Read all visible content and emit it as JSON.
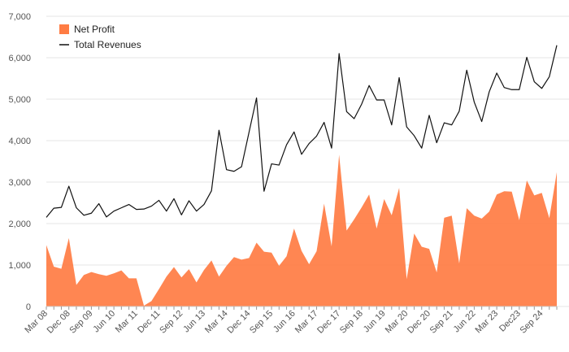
{
  "chart_data": {
    "type": "area",
    "title": "",
    "xlabel": "",
    "ylabel": "",
    "ylim": [
      0,
      7000
    ],
    "yticks": [
      0,
      1000,
      2000,
      3000,
      4000,
      5000,
      6000,
      7000
    ],
    "ytick_labels": [
      "0",
      "1,000",
      "2,000",
      "3,000",
      "4,000",
      "5,000",
      "6,000",
      "7,000"
    ],
    "grid": true,
    "legend_position": "top-left",
    "colors": {
      "net_profit": "#ff7c43",
      "total_revenues": "#111111"
    },
    "categories": [
      "Mar 08",
      "Jun 08",
      "Sep 08",
      "Dec 08",
      "Mar 09",
      "Jun 09",
      "Sep 09",
      "Dec 09",
      "Mar 10",
      "Jun 10",
      "Sep 10",
      "Dec 10",
      "Mar 11",
      "Jun 11",
      "Sep 11",
      "Dec 11",
      "Mar 12",
      "Jun 12",
      "Sep 12",
      "Dec 12",
      "Mar 13",
      "Jun 13",
      "Sep 13",
      "Dec 13",
      "Mar 14",
      "Jun 14",
      "Sep 14",
      "Dec 14",
      "Mar 15",
      "Jun 15",
      "Sep 15",
      "Dec 15",
      "Mar 16",
      "Jun 16",
      "Sep 16",
      "Dec 16",
      "Mar 17",
      "Jun 17",
      "Sep 17",
      "Dec 17",
      "Mar 18",
      "Jun 18",
      "Sep 18",
      "Dec 18",
      "Mar 19",
      "Jun 19",
      "Sep 19",
      "Dec 19",
      "Mar 20",
      "Jun 20",
      "Sep 20",
      "Dec 20",
      "Mar 21",
      "Jun 21",
      "Sep 21",
      "Dec 21",
      "Mar 22",
      "Jun 22",
      "Sep 22",
      "Dec 22",
      "Mar 23",
      "Jun 23",
      "Sep 23",
      "Dec 23",
      "Mar 24",
      "Jun 24",
      "Sep 24",
      "Dec 24",
      "Mar 25"
    ],
    "x_tick_labels": [
      "Mar 08",
      "Dec 08",
      "Sep 09",
      "Jun 10",
      "Mar 11",
      "Dec 11",
      "Sep 12",
      "Jun 13",
      "Mar 14",
      "Dec 14",
      "Sep 15",
      "Jun 16",
      "Mar 17",
      "Dec 17",
      "Sep 18",
      "Jun 19",
      "Mar 20",
      "Dec 20",
      "Sep 21",
      "Jun 22",
      "Mar 23",
      "Dec23",
      "Sep 24"
    ],
    "series": [
      {
        "name": "Net Profit",
        "type": "area",
        "values": [
          1480,
          960,
          910,
          1650,
          520,
          760,
          830,
          780,
          740,
          800,
          870,
          680,
          680,
          20,
          130,
          420,
          720,
          950,
          700,
          900,
          580,
          880,
          1110,
          720,
          980,
          1190,
          1130,
          1170,
          1540,
          1320,
          1300,
          980,
          1210,
          1880,
          1340,
          1020,
          1330,
          2480,
          1450,
          3660,
          1830,
          2100,
          2390,
          2700,
          1880,
          2590,
          2200,
          2860,
          660,
          1760,
          1440,
          1390,
          820,
          2140,
          2190,
          1040,
          2370,
          2190,
          2120,
          2290,
          2700,
          2780,
          2770,
          2080,
          3040,
          2680,
          2740,
          2130,
          3240
        ]
      },
      {
        "name": "Total Revenues",
        "type": "line",
        "values": [
          2150,
          2370,
          2390,
          2900,
          2380,
          2200,
          2250,
          2480,
          2160,
          2300,
          2380,
          2460,
          2340,
          2350,
          2420,
          2560,
          2300,
          2600,
          2210,
          2550,
          2300,
          2460,
          2790,
          4250,
          3300,
          3260,
          3370,
          4200,
          5030,
          2780,
          3440,
          3410,
          3900,
          4210,
          3670,
          3930,
          4110,
          4440,
          3820,
          6100,
          4700,
          4530,
          4880,
          5330,
          4980,
          4980,
          4380,
          5520,
          4330,
          4120,
          3820,
          4610,
          3950,
          4430,
          4380,
          4710,
          5700,
          4930,
          4460,
          5180,
          5630,
          5280,
          5230,
          5230,
          6010,
          5420,
          5260,
          5540,
          6300
        ]
      }
    ]
  }
}
